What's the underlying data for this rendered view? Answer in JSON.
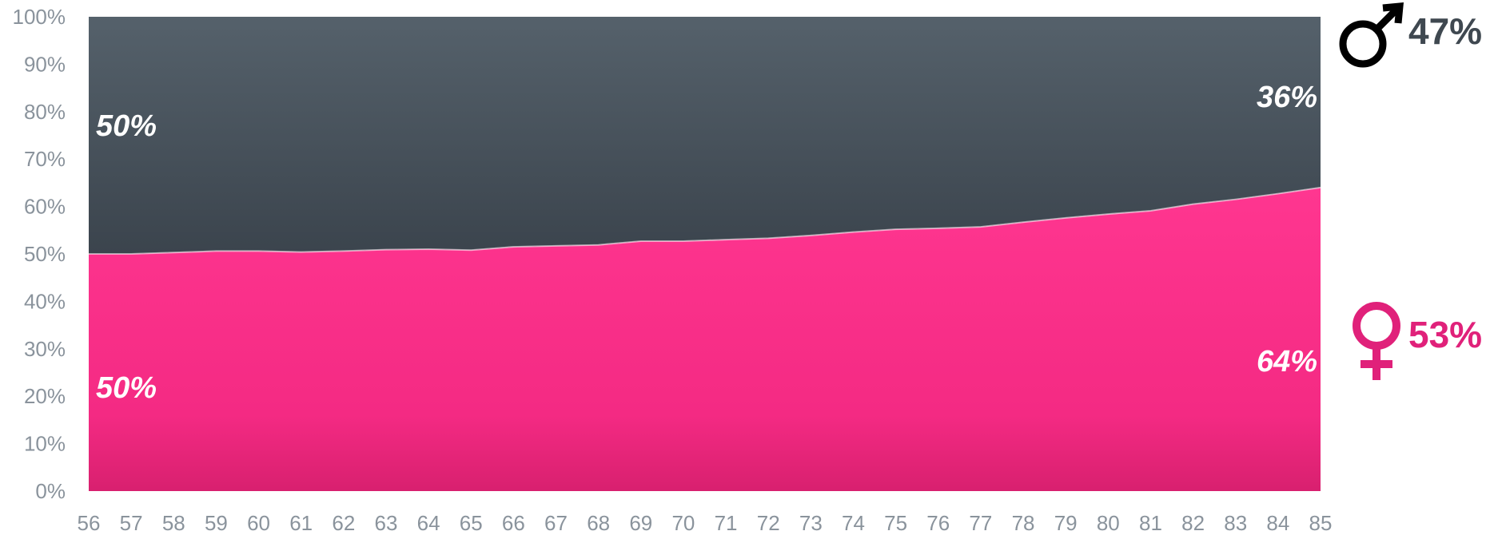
{
  "colors": {
    "female": "#ff2d87",
    "female_legend": "#e0217a",
    "male": "#45505a",
    "male_legend": "#3f4850",
    "tick": "#8a939c"
  },
  "chart_data": {
    "type": "area",
    "stacked": "percent",
    "x": [
      "56",
      "57",
      "58",
      "59",
      "60",
      "61",
      "62",
      "63",
      "64",
      "65",
      "66",
      "67",
      "68",
      "69",
      "70",
      "71",
      "72",
      "73",
      "74",
      "75",
      "76",
      "77",
      "78",
      "79",
      "80",
      "81",
      "82",
      "83",
      "84",
      "85"
    ],
    "series": [
      {
        "name": "female",
        "icon": "female-symbol-icon",
        "values": [
          50.0,
          50.0,
          50.3,
          50.6,
          50.6,
          50.4,
          50.6,
          50.9,
          51.0,
          50.8,
          51.5,
          51.7,
          51.9,
          52.7,
          52.7,
          53.0,
          53.3,
          53.9,
          54.6,
          55.2,
          55.4,
          55.7,
          56.7,
          57.6,
          58.4,
          59.1,
          60.5,
          61.5,
          62.7,
          64.0
        ]
      },
      {
        "name": "male",
        "icon": "male-symbol-icon",
        "values": [
          50.0,
          50.0,
          49.7,
          49.4,
          49.4,
          49.6,
          49.4,
          49.1,
          49.0,
          49.2,
          48.5,
          48.3,
          48.1,
          47.3,
          47.3,
          47.0,
          46.7,
          46.1,
          45.4,
          44.8,
          44.6,
          44.3,
          43.3,
          42.4,
          41.6,
          40.9,
          39.5,
          38.5,
          37.3,
          36.0
        ]
      }
    ],
    "ylim": [
      0,
      100
    ],
    "yticks": [
      "0%",
      "10%",
      "20%",
      "30%",
      "40%",
      "50%",
      "60%",
      "70%",
      "80%",
      "90%",
      "100%"
    ],
    "annotations": {
      "male_start": "50%",
      "male_end": "36%",
      "female_start": "50%",
      "female_end": "64%"
    },
    "legend": {
      "placement": "right",
      "male_pct": "47%",
      "female_pct": "53%"
    }
  }
}
